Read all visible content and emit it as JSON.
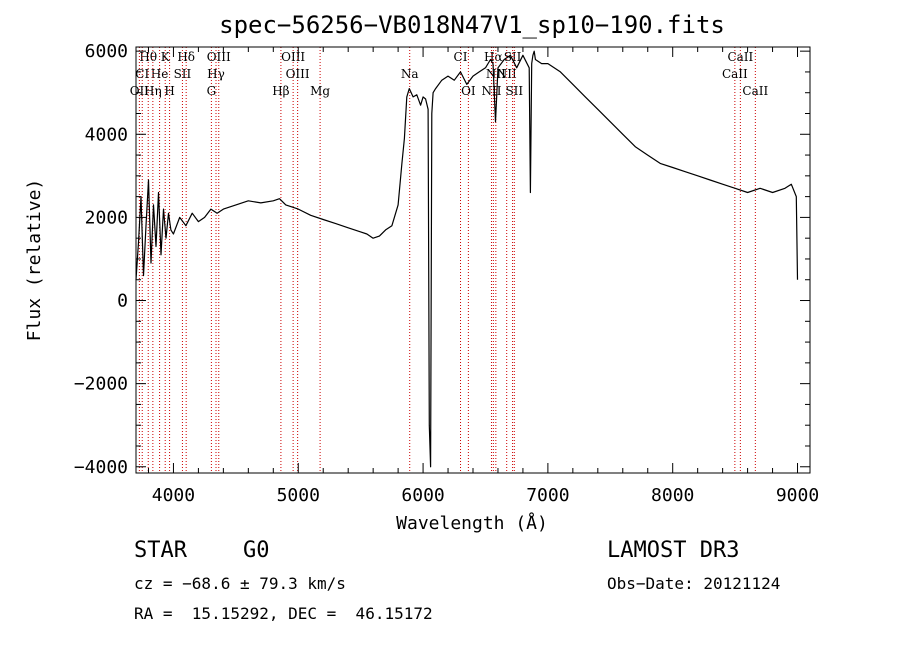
{
  "chart_data": {
    "type": "line",
    "title": "spec−56256−VB018N47V1_sp10−190.fits",
    "xlabel": "Wavelength (Å)",
    "ylabel": "Flux (relative)",
    "xlim": [
      3700,
      9100
    ],
    "ylim": [
      -4150,
      6100
    ],
    "x_ticks": [
      4000,
      5000,
      6000,
      7000,
      8000,
      9000
    ],
    "y_ticks": [
      -4000,
      -2000,
      0,
      2000,
      4000,
      6000
    ],
    "x_tick_labels": [
      "4000",
      "5000",
      "6000",
      "7000",
      "8000",
      "9000"
    ],
    "y_tick_labels": [
      "−4000",
      "−2000",
      "0",
      "2000",
      "4000",
      "6000"
    ],
    "grid": false,
    "line_color": "#000000",
    "marker_color": "#cc0000",
    "series": [
      {
        "x": [
          3700,
          3720,
          3740,
          3760,
          3780,
          3800,
          3820,
          3840,
          3860,
          3880,
          3900,
          3920,
          3940,
          3960,
          3980,
          4000,
          4050,
          4100,
          4150,
          4200,
          4250,
          4300,
          4350,
          4400,
          4500,
          4600,
          4700,
          4800,
          4850,
          4900,
          5000,
          5100,
          5200,
          5300,
          5400,
          5500,
          5550,
          5600,
          5650,
          5700,
          5750,
          5800,
          5830,
          5850,
          5870,
          5890,
          5920,
          5950,
          5980,
          6000,
          6020,
          6040,
          6050,
          6060,
          6070,
          6080,
          6100,
          6150,
          6200,
          6250,
          6300,
          6350,
          6400,
          6450,
          6500,
          6540,
          6560,
          6580,
          6600,
          6650,
          6700,
          6750,
          6800,
          6850,
          6860,
          6870,
          6880,
          6890,
          6900,
          6950,
          7000,
          7100,
          7200,
          7300,
          7400,
          7500,
          7600,
          7700,
          7800,
          7900,
          8000,
          8100,
          8200,
          8300,
          8400,
          8500,
          8600,
          8700,
          8800,
          8900,
          8950,
          8990,
          9000
        ],
        "y": [
          500,
          1400,
          2500,
          600,
          1800,
          2900,
          900,
          2300,
          1300,
          2600,
          1100,
          2200,
          1500,
          2100,
          1700,
          1600,
          2000,
          1800,
          2100,
          1900,
          2000,
          2200,
          2100,
          2200,
          2300,
          2400,
          2350,
          2400,
          2450,
          2300,
          2200,
          2050,
          1950,
          1850,
          1750,
          1650,
          1600,
          1500,
          1550,
          1700,
          1800,
          2300,
          3300,
          3900,
          4900,
          5100,
          4900,
          4950,
          4700,
          4900,
          4850,
          4600,
          -3000,
          -4000,
          4500,
          5000,
          5100,
          5300,
          5400,
          5300,
          5500,
          5200,
          5400,
          5500,
          5600,
          5800,
          5700,
          4300,
          5600,
          5800,
          5900,
          5600,
          5900,
          5600,
          2600,
          5700,
          5900,
          6000,
          5800,
          5700,
          5700,
          5500,
          5200,
          4900,
          4600,
          4300,
          4000,
          3700,
          3500,
          3300,
          3200,
          3100,
          3000,
          2900,
          2800,
          2700,
          2600,
          2700,
          2600,
          2700,
          2800,
          2500,
          500
        ]
      }
    ],
    "line_markers": [
      {
        "label": "Hθ",
        "x": 3798,
        "row": 1
      },
      {
        "label": "K",
        "x": 3934,
        "row": 1
      },
      {
        "label": "Hδ",
        "x": 4102,
        "row": 1
      },
      {
        "label": "OIII",
        "x": 4363,
        "row": 1
      },
      {
        "label": "OIII",
        "x": 4959,
        "row": 1
      },
      {
        "label": "CI",
        "x": 6300,
        "row": 1
      },
      {
        "label": "Hα",
        "x": 6563,
        "row": 1
      },
      {
        "label": "SII",
        "x": 6717,
        "row": 1
      },
      {
        "label": "CaII",
        "x": 8542,
        "row": 1
      },
      {
        "label": "CI",
        "x": 3750,
        "row": 2
      },
      {
        "label": "He",
        "x": 3889,
        "row": 2
      },
      {
        "label": "SII",
        "x": 4072,
        "row": 2
      },
      {
        "label": "Hγ",
        "x": 4341,
        "row": 2
      },
      {
        "label": "OIII",
        "x": 4995,
        "row": 2
      },
      {
        "label": "Na",
        "x": 5893,
        "row": 2
      },
      {
        "label": "NII",
        "x": 6583,
        "row": 2
      },
      {
        "label": "NII",
        "x": 6670,
        "row": 2
      },
      {
        "label": "CaII",
        "x": 8498,
        "row": 2
      },
      {
        "label": "OII",
        "x": 3727,
        "row": 3
      },
      {
        "label": "Hη",
        "x": 3835,
        "row": 3
      },
      {
        "label": "H",
        "x": 3969,
        "row": 3
      },
      {
        "label": "G",
        "x": 4304,
        "row": 3
      },
      {
        "label": "Hβ",
        "x": 4861,
        "row": 3
      },
      {
        "label": "Mg",
        "x": 5175,
        "row": 3
      },
      {
        "label": "OI",
        "x": 6363,
        "row": 3
      },
      {
        "label": "NII",
        "x": 6548,
        "row": 3
      },
      {
        "label": "SII",
        "x": 6731,
        "row": 3
      },
      {
        "label": "CaII",
        "x": 8662,
        "row": 3
      }
    ]
  },
  "info": {
    "class_label": "STAR",
    "subclass_label": "G0",
    "survey": "LAMOST DR3",
    "cz_text": "cz = −68.6 ± 79.3 km/s",
    "obs_date": "Obs−Date: 20121124",
    "coords_text": "RA =  15.15292, DEC =  46.15172"
  }
}
